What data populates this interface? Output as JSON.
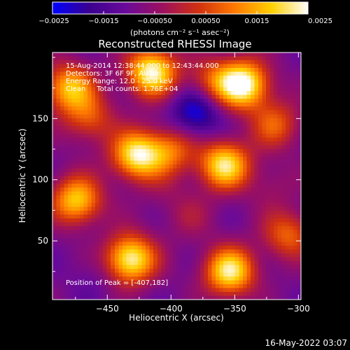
{
  "chart_data": {
    "type": "heatmap",
    "title": "Reconstructed RHESSI Image",
    "xlabel": "Heliocentric X (arcsec)",
    "ylabel": "Heliocentric Y (arcsec)",
    "xlim": [
      -493,
      -298
    ],
    "ylim": [
      2,
      204
    ],
    "x_ticks": [
      -450,
      -400,
      -350,
      -300
    ],
    "y_ticks": [
      50,
      100,
      150
    ],
    "x_tick_labels": [
      "−450",
      "−400",
      "−350",
      "−300"
    ],
    "y_tick_labels": [
      "50",
      "100",
      "150"
    ],
    "colorbar": {
      "range": [
        -0.0025,
        0.0025
      ],
      "ticks": [
        -0.0025,
        -0.0015,
        -0.0005,
        0.0005,
        0.0015,
        0.0025
      ],
      "tick_labels": [
        "−0.0025",
        "−0.0015",
        "−0.00050",
        "0.00050",
        "0.0015",
        "0.0025"
      ],
      "unit_label": "(photons cm⁻² s⁻¹ asec⁻²)",
      "colormap": [
        "#0000ff",
        "#3a0090",
        "#6a0a9a",
        "#9b1060",
        "#d03010",
        "#ff7a00",
        "#ffd000",
        "#ffffff"
      ]
    },
    "annotations": {
      "line1": "15-Aug-2014 12:38:44.000 to 12:43:44.000",
      "line2": "Detectors: 3F 6F 9F, AUTO",
      "line3": "Energy Range: 12.0 - 25.0 keV",
      "line4": "Clean     Total counts: 1.76E+04",
      "peak": "Position of Peak = [-407,182]"
    },
    "sources": [
      {
        "x": -415,
        "y": 188,
        "flux": 0.0024
      },
      {
        "x": -343,
        "y": 178,
        "flux": 0.0025
      },
      {
        "x": -480,
        "y": 175,
        "flux": 0.0016
      },
      {
        "x": -380,
        "y": 155,
        "flux": -0.0025
      },
      {
        "x": -367,
        "y": 180,
        "flux": 0.0006
      },
      {
        "x": -427,
        "y": 120,
        "flux": 0.0022
      },
      {
        "x": -358,
        "y": 112,
        "flux": 0.0021
      },
      {
        "x": -400,
        "y": 124,
        "flux": 0.0008
      },
      {
        "x": -474,
        "y": 83,
        "flux": 0.0018
      },
      {
        "x": -464,
        "y": 150,
        "flux": 0.0006
      },
      {
        "x": -432,
        "y": 35,
        "flux": 0.0024
      },
      {
        "x": -354,
        "y": 25,
        "flux": 0.0022
      },
      {
        "x": -385,
        "y": 70,
        "flux": -0.0003
      },
      {
        "x": -318,
        "y": 145,
        "flux": 0.0007
      },
      {
        "x": -308,
        "y": 55,
        "flux": 0.0008
      },
      {
        "x": -458,
        "y": 22,
        "flux": -0.0012
      },
      {
        "x": -405,
        "y": 92,
        "flux": -0.0006
      },
      {
        "x": -322,
        "y": 95,
        "flux": -0.0004
      }
    ]
  },
  "footer": {
    "timestamp": "16-May-2022 03:07"
  }
}
